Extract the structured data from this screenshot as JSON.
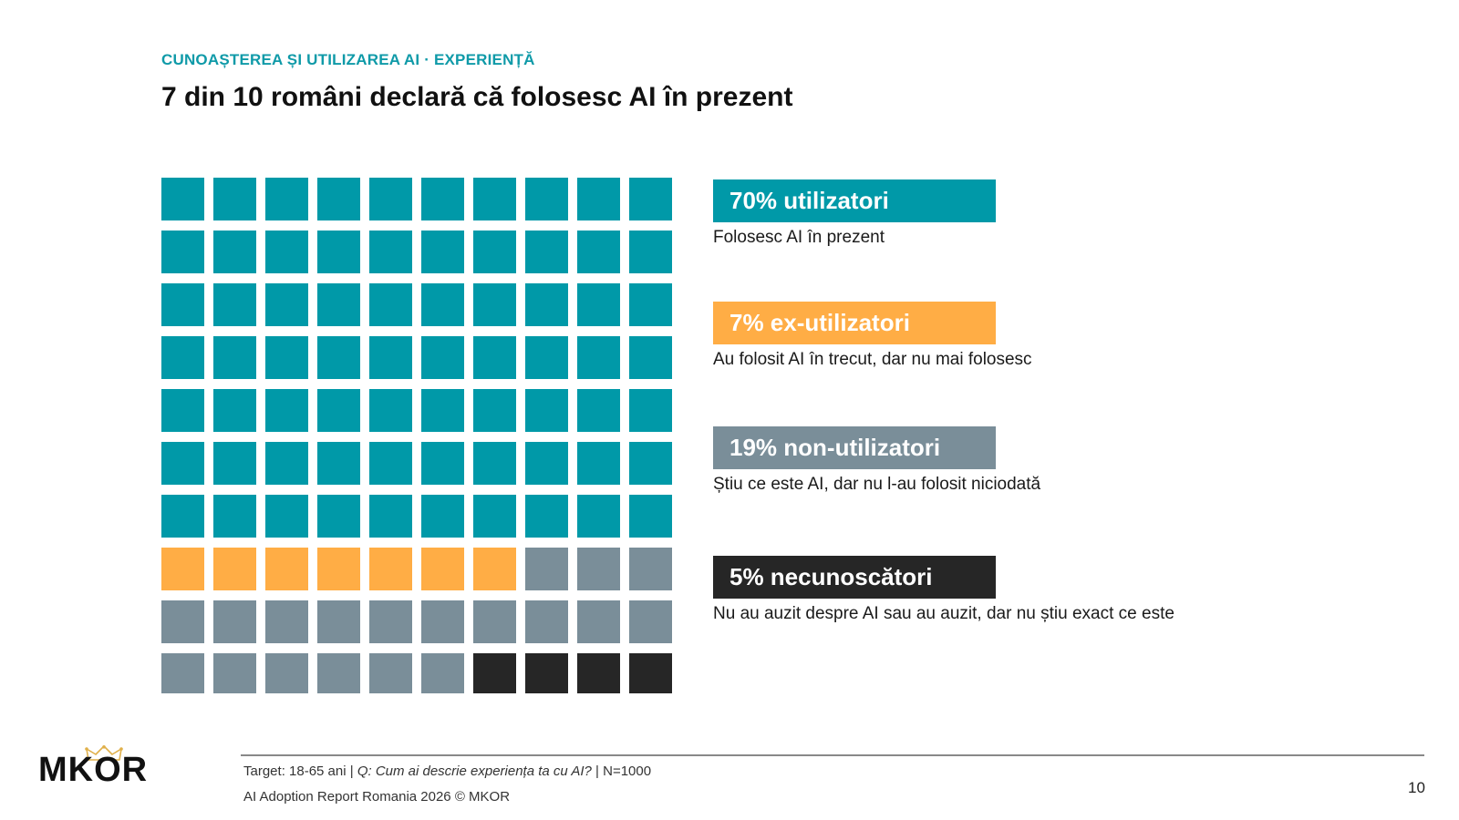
{
  "header": {
    "kicker": "CUNOAȘTEREA ȘI UTILIZAREA AI · EXPERIENȚĂ",
    "title": "7 din 10 români declară că folosesc AI în prezent"
  },
  "chart_data": {
    "type": "waffle",
    "total_cells": 100,
    "columns": 10,
    "rows": 10,
    "series": [
      {
        "name": "70% utilizatori",
        "value": 70,
        "color": "#0099a8",
        "description": "Folosesc AI în prezent"
      },
      {
        "name": "7% ex-utilizatori",
        "value": 7,
        "color": "#ffad45",
        "description": "Au folosit AI în trecut, dar nu mai folosesc"
      },
      {
        "name": "19% non-utilizatori",
        "value": 19,
        "color": "#7a8e99",
        "description": "Știu ce este AI, dar nu l-au folosit niciodată"
      },
      {
        "name": "5% necunoscători",
        "value": 5,
        "color": "#262626",
        "description": "Nu au auzit despre AI sau au auzit, dar nu știu exact ce este"
      }
    ],
    "legend_position": "right"
  },
  "footer": {
    "target": "Target: 18-65 ani | ",
    "question": "Q: Cum ai descrie experiența ta cu AI?",
    "sample": " | N=1000",
    "copyright": "AI Adoption Report Romania 2026 © MKOR",
    "page_number": "10"
  },
  "logo": {
    "text": "MKOR",
    "icon": "crown-icon"
  }
}
